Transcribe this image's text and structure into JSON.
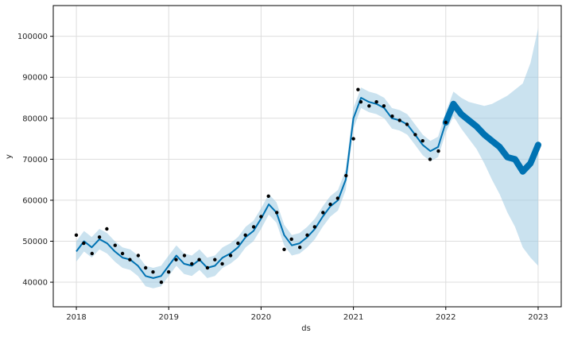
{
  "chart_data": {
    "type": "line",
    "title": "",
    "xlabel": "ds",
    "ylabel": "y",
    "x_ticks": [
      "2018",
      "2019",
      "2020",
      "2021",
      "2022",
      "2023"
    ],
    "y_ticks": [
      "40000",
      "50000",
      "60000",
      "70000",
      "80000",
      "90000",
      "100000"
    ],
    "xlim": [
      2017.75,
      2023.25
    ],
    "ylim": [
      34000,
      107500
    ],
    "grid": true,
    "colors": {
      "observed": "#000000",
      "forecast_line": "#0072B2",
      "uncertainty": "#9ecae1"
    },
    "observed_points": [
      [
        2018.0,
        51500
      ],
      [
        2018.08,
        49500
      ],
      [
        2018.17,
        47000
      ],
      [
        2018.25,
        51000
      ],
      [
        2018.33,
        53000
      ],
      [
        2018.42,
        49000
      ],
      [
        2018.5,
        47000
      ],
      [
        2018.58,
        45500
      ],
      [
        2018.67,
        46500
      ],
      [
        2018.75,
        43500
      ],
      [
        2018.83,
        42500
      ],
      [
        2018.92,
        40000
      ],
      [
        2019.0,
        42500
      ],
      [
        2019.08,
        45500
      ],
      [
        2019.17,
        46500
      ],
      [
        2019.25,
        44500
      ],
      [
        2019.33,
        45500
      ],
      [
        2019.42,
        43500
      ],
      [
        2019.5,
        45500
      ],
      [
        2019.58,
        44500
      ],
      [
        2019.67,
        46500
      ],
      [
        2019.75,
        49500
      ],
      [
        2019.83,
        51500
      ],
      [
        2019.92,
        53500
      ],
      [
        2020.0,
        56000
      ],
      [
        2020.08,
        61000
      ],
      [
        2020.17,
        57000
      ],
      [
        2020.25,
        48000
      ],
      [
        2020.33,
        50500
      ],
      [
        2020.42,
        48500
      ],
      [
        2020.5,
        51500
      ],
      [
        2020.58,
        53500
      ],
      [
        2020.67,
        57000
      ],
      [
        2020.75,
        59000
      ],
      [
        2020.83,
        60500
      ],
      [
        2020.92,
        66000
      ],
      [
        2021.0,
        75000
      ],
      [
        2021.05,
        87000
      ],
      [
        2021.08,
        84000
      ],
      [
        2021.17,
        83000
      ],
      [
        2021.25,
        84000
      ],
      [
        2021.33,
        83000
      ],
      [
        2021.42,
        80500
      ],
      [
        2021.5,
        79500
      ],
      [
        2021.58,
        78500
      ],
      [
        2021.67,
        76000
      ],
      [
        2021.75,
        74500
      ],
      [
        2021.83,
        70000
      ],
      [
        2021.92,
        72000
      ],
      [
        2022.0,
        79000
      ]
    ],
    "series": [
      {
        "x": [
          2018.0,
          2018.083,
          2018.167,
          2018.25,
          2018.333,
          2018.417,
          2018.5,
          2018.583,
          2018.667,
          2018.75,
          2018.833,
          2018.917,
          2019.0,
          2019.083,
          2019.167,
          2019.25,
          2019.333,
          2019.417,
          2019.5,
          2019.583,
          2019.667,
          2019.75,
          2019.833,
          2019.917,
          2020.0,
          2020.083,
          2020.167,
          2020.25,
          2020.333,
          2020.417,
          2020.5,
          2020.583,
          2020.667,
          2020.75,
          2020.833,
          2020.917,
          2021.0,
          2021.083,
          2021.167,
          2021.25,
          2021.333,
          2021.417,
          2021.5,
          2021.583,
          2021.667,
          2021.75,
          2021.833,
          2021.917,
          2022.0,
          2022.083,
          2022.167,
          2022.25,
          2022.333,
          2022.417,
          2022.5,
          2022.583,
          2022.667,
          2022.75,
          2022.833,
          2022.917,
          2023.0
        ],
        "yhat": [
          47500,
          50000,
          48500,
          50500,
          49500,
          47500,
          46000,
          45500,
          44000,
          41500,
          41000,
          41500,
          44000,
          46500,
          44500,
          44000,
          45500,
          43500,
          44000,
          46000,
          47000,
          48500,
          51000,
          52500,
          55500,
          59000,
          57000,
          51500,
          49000,
          49500,
          51000,
          53000,
          56000,
          58500,
          60000,
          65000,
          80000,
          85000,
          84000,
          83500,
          82500,
          80000,
          79500,
          78500,
          76000,
          73500,
          72000,
          73000,
          79000,
          83500,
          81000,
          79500,
          78000,
          76000,
          74500,
          73000,
          70500,
          70000,
          67000,
          69000,
          73500
        ],
        "yhat_lower": [
          45000,
          47500,
          46000,
          48000,
          47000,
          45000,
          43500,
          43000,
          41500,
          39000,
          38500,
          39000,
          41500,
          44000,
          42000,
          41500,
          43000,
          41000,
          41500,
          43500,
          44500,
          46000,
          48500,
          50000,
          53000,
          56500,
          54500,
          49000,
          46500,
          47000,
          48500,
          50500,
          53500,
          56000,
          57500,
          62500,
          77500,
          82500,
          81500,
          81000,
          80000,
          77500,
          77000,
          76000,
          73500,
          71000,
          69500,
          70500,
          76500,
          80500,
          77500,
          75000,
          72500,
          69000,
          65000,
          61500,
          57000,
          53500,
          48500,
          46000,
          44000
        ],
        "yhat_upper": [
          50000,
          52500,
          51000,
          53000,
          52000,
          50000,
          48500,
          48000,
          46500,
          44000,
          43500,
          44000,
          46500,
          49000,
          47000,
          46500,
          48000,
          46000,
          46500,
          48500,
          49500,
          51000,
          53500,
          55000,
          58000,
          61500,
          59500,
          54000,
          51500,
          52000,
          53500,
          55500,
          58500,
          61000,
          62500,
          67500,
          82500,
          87500,
          86500,
          86000,
          85000,
          82500,
          82000,
          81000,
          78500,
          76000,
          74500,
          75500,
          81500,
          86500,
          85000,
          84000,
          83500,
          83000,
          83500,
          84500,
          85500,
          87000,
          88500,
          93500,
          102000
        ]
      }
    ]
  }
}
